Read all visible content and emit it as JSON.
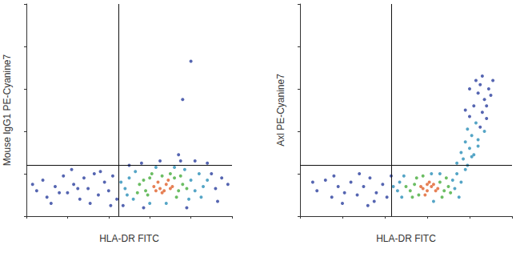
{
  "chart_data": [
    {
      "type": "scatter",
      "xlabel": "HLA-DR FITC",
      "ylabel": "Mouse IgG1 PE-Cyanine7",
      "xlim": [
        0,
        100
      ],
      "ylim": [
        0,
        100
      ],
      "xticks": [
        0,
        20,
        40,
        60,
        80,
        100
      ],
      "yticks": [
        0,
        20,
        40,
        60,
        80,
        100
      ],
      "tick_labels": false,
      "grid": false,
      "gate": {
        "x": 45,
        "y": 24
      },
      "points": [
        [
          62,
          14
        ],
        [
          65,
          13
        ],
        [
          67,
          12
        ],
        [
          68,
          15
        ],
        [
          70,
          13
        ],
        [
          64,
          16
        ],
        [
          66,
          11
        ],
        [
          69,
          17
        ],
        [
          71,
          14
        ],
        [
          63,
          12
        ],
        [
          55,
          15,
          2
        ],
        [
          58,
          12,
          2
        ],
        [
          60,
          18,
          2
        ],
        [
          72,
          18,
          2
        ],
        [
          74,
          12,
          2
        ],
        [
          76,
          15,
          2
        ],
        [
          59,
          10,
          2
        ],
        [
          73,
          9,
          2
        ],
        [
          61,
          20,
          2
        ],
        [
          75,
          19,
          2
        ],
        [
          57,
          17,
          2
        ],
        [
          78,
          13,
          2
        ],
        [
          54,
          11,
          2
        ],
        [
          70,
          20,
          2
        ],
        [
          66,
          19,
          2
        ],
        [
          48,
          13,
          1
        ],
        [
          50,
          18,
          1
        ],
        [
          52,
          8,
          1
        ],
        [
          80,
          17,
          1
        ],
        [
          82,
          12,
          1
        ],
        [
          84,
          20,
          1
        ],
        [
          79,
          8,
          1
        ],
        [
          53,
          21,
          1
        ],
        [
          46,
          16,
          1
        ],
        [
          86,
          14,
          1
        ],
        [
          77,
          22,
          1
        ],
        [
          60,
          6,
          1
        ],
        [
          68,
          6,
          1
        ],
        [
          72,
          23,
          1
        ],
        [
          49,
          10,
          1
        ],
        [
          85,
          9,
          1
        ],
        [
          88,
          17,
          1
        ],
        [
          63,
          23,
          1
        ],
        [
          5,
          12,
          0
        ],
        [
          8,
          17,
          0
        ],
        [
          10,
          9,
          0
        ],
        [
          14,
          14,
          0
        ],
        [
          18,
          19,
          0
        ],
        [
          20,
          11,
          0
        ],
        [
          23,
          15,
          0
        ],
        [
          26,
          8,
          0
        ],
        [
          28,
          18,
          0
        ],
        [
          30,
          13,
          0
        ],
        [
          33,
          20,
          0
        ],
        [
          35,
          10,
          0
        ],
        [
          38,
          16,
          0
        ],
        [
          40,
          12,
          0
        ],
        [
          42,
          19,
          0
        ],
        [
          12,
          6,
          0
        ],
        [
          22,
          22,
          0
        ],
        [
          31,
          6,
          0
        ],
        [
          36,
          21,
          0
        ],
        [
          44,
          8,
          0
        ],
        [
          16,
          11,
          0
        ],
        [
          25,
          13,
          0
        ],
        [
          3,
          15,
          0
        ],
        [
          41,
          5,
          0
        ],
        [
          90,
          20,
          0
        ],
        [
          92,
          13,
          0
        ],
        [
          95,
          18,
          0
        ],
        [
          88,
          25,
          0
        ],
        [
          82,
          26,
          0
        ],
        [
          75,
          26,
          0
        ],
        [
          65,
          26,
          0
        ],
        [
          56,
          25,
          0
        ],
        [
          50,
          24,
          0
        ],
        [
          93,
          7,
          0
        ],
        [
          47,
          5,
          0
        ],
        [
          57,
          4,
          0
        ],
        [
          78,
          4,
          0
        ],
        [
          98,
          15,
          0
        ],
        [
          80,
          73,
          0
        ],
        [
          76,
          55,
          0
        ],
        [
          74,
          29,
          0
        ]
      ]
    },
    {
      "type": "scatter",
      "xlabel": "HLA-DR FITC",
      "ylabel": "Axl PE-Cyanine7",
      "xlim": [
        0,
        100
      ],
      "ylim": [
        0,
        100
      ],
      "xticks": [
        0,
        20,
        40,
        60,
        80,
        100
      ],
      "yticks": [
        0,
        20,
        40,
        60,
        80,
        100
      ],
      "tick_labels": false,
      "grid": false,
      "gate": {
        "x": 43,
        "y": 24
      },
      "points": [
        [
          58,
          13,
          3
        ],
        [
          60,
          12,
          3
        ],
        [
          62,
          14,
          3
        ],
        [
          64,
          12,
          3
        ],
        [
          61,
          16,
          3
        ],
        [
          59,
          10,
          3
        ],
        [
          63,
          15,
          3
        ],
        [
          65,
          13,
          3
        ],
        [
          57,
          14,
          3
        ],
        [
          60,
          15,
          3
        ],
        [
          52,
          12,
          2
        ],
        [
          54,
          15,
          2
        ],
        [
          56,
          10,
          2
        ],
        [
          66,
          16,
          2
        ],
        [
          68,
          12,
          2
        ],
        [
          70,
          14,
          2
        ],
        [
          55,
          18,
          2
        ],
        [
          67,
          9,
          2
        ],
        [
          53,
          9,
          2
        ],
        [
          69,
          18,
          2
        ],
        [
          58,
          19,
          2
        ],
        [
          71,
          11,
          2
        ],
        [
          50,
          14,
          2
        ],
        [
          46,
          12,
          1
        ],
        [
          47,
          16,
          1
        ],
        [
          48,
          9,
          1
        ],
        [
          72,
          17,
          1
        ],
        [
          74,
          20,
          1
        ],
        [
          73,
          13,
          1
        ],
        [
          75,
          9,
          1
        ],
        [
          49,
          19,
          1
        ],
        [
          66,
          20,
          1
        ],
        [
          76,
          16,
          1
        ],
        [
          62,
          20,
          1
        ],
        [
          44,
          14,
          1
        ],
        [
          78,
          22,
          1
        ],
        [
          63,
          7,
          1
        ],
        [
          8,
          12,
          0
        ],
        [
          12,
          17,
          0
        ],
        [
          15,
          9,
          0
        ],
        [
          18,
          14,
          0
        ],
        [
          21,
          11,
          0
        ],
        [
          24,
          16,
          0
        ],
        [
          27,
          10,
          0
        ],
        [
          30,
          14,
          0
        ],
        [
          33,
          18,
          0
        ],
        [
          36,
          11,
          0
        ],
        [
          39,
          15,
          0
        ],
        [
          41,
          9,
          0
        ],
        [
          43,
          19,
          0
        ],
        [
          20,
          6,
          0
        ],
        [
          28,
          20,
          0
        ],
        [
          35,
          7,
          0
        ],
        [
          6,
          16,
          0
        ],
        [
          16,
          19,
          0
        ],
        [
          32,
          5,
          0
        ],
        [
          74,
          25,
          1
        ],
        [
          77,
          27,
          1
        ],
        [
          79,
          24,
          1
        ],
        [
          76,
          30,
          1
        ],
        [
          80,
          32,
          1
        ],
        [
          78,
          35,
          1
        ],
        [
          82,
          29,
          1
        ],
        [
          81,
          38,
          1
        ],
        [
          79,
          41,
          1
        ],
        [
          84,
          36,
          1
        ],
        [
          83,
          44,
          1
        ],
        [
          81,
          28,
          1
        ],
        [
          84,
          33,
          1
        ],
        [
          87,
          40,
          1
        ],
        [
          80,
          47,
          0
        ],
        [
          85,
          42,
          0
        ],
        [
          86,
          49,
          0
        ],
        [
          82,
          52,
          0
        ],
        [
          87,
          55,
          0
        ],
        [
          84,
          58,
          0
        ],
        [
          88,
          46,
          0
        ],
        [
          85,
          62,
          0
        ],
        [
          89,
          60,
          0
        ],
        [
          83,
          64,
          0
        ],
        [
          86,
          66,
          0
        ],
        [
          80,
          60,
          0
        ],
        [
          88,
          52,
          0
        ],
        [
          90,
          57,
          0
        ],
        [
          78,
          50,
          0
        ],
        [
          91,
          64,
          0
        ]
      ]
    }
  ]
}
